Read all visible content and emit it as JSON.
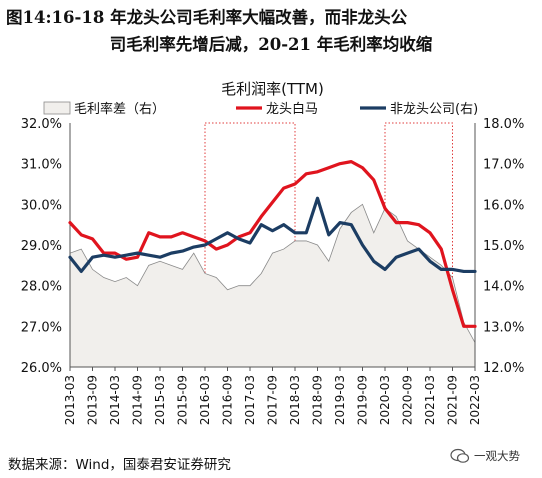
{
  "figure": {
    "title_line1": "图14:16-18 年龙头公司毛利率大幅改善，而非龙头公",
    "title_line2": "司毛利率先增后减，20-21 年毛利率均收缩",
    "source": "数据来源：Wind，国泰君安证券研究",
    "watermark": "一观大势"
  },
  "chart_data": {
    "type": "line",
    "title": "毛利润率(TTM)",
    "x": [
      "2013-03",
      "2013-06",
      "2013-09",
      "2013-12",
      "2014-03",
      "2014-06",
      "2014-09",
      "2014-12",
      "2015-03",
      "2015-06",
      "2015-09",
      "2015-12",
      "2016-03",
      "2016-06",
      "2016-09",
      "2016-12",
      "2017-03",
      "2017-06",
      "2017-09",
      "2017-12",
      "2018-03",
      "2018-06",
      "2018-09",
      "2018-12",
      "2019-03",
      "2019-06",
      "2019-09",
      "2019-12",
      "2020-03",
      "2020-06",
      "2020-09",
      "2020-12",
      "2021-03",
      "2021-06",
      "2021-09",
      "2021-12",
      "2022-03"
    ],
    "xticks": [
      "2013-03",
      "2013-09",
      "2014-03",
      "2014-09",
      "2015-03",
      "2015-09",
      "2016-03",
      "2016-09",
      "2017-03",
      "2017-09",
      "2018-03",
      "2018-09",
      "2019-03",
      "2019-09",
      "2020-03",
      "2020-09",
      "2021-03",
      "2021-09",
      "2022-03"
    ],
    "y_left": {
      "ylim": [
        26.0,
        32.0
      ],
      "ticks": [
        "26.0%",
        "27.0%",
        "28.0%",
        "29.0%",
        "30.0%",
        "31.0%",
        "32.0%"
      ]
    },
    "y_right": {
      "ylim": [
        12.0,
        18.0
      ],
      "ticks": [
        "12.0%",
        "13.0%",
        "14.0%",
        "15.0%",
        "16.0%",
        "17.0%",
        "18.0%"
      ]
    },
    "series": [
      {
        "name": "毛利率差（右）",
        "axis": "right",
        "style": "area",
        "color": "#f1efec",
        "values": [
          14.8,
          14.9,
          14.4,
          14.2,
          14.1,
          14.2,
          14.0,
          14.5,
          14.6,
          14.5,
          14.4,
          14.8,
          14.3,
          14.2,
          13.9,
          14.0,
          14.0,
          14.3,
          14.8,
          14.9,
          15.1,
          15.1,
          15.0,
          14.6,
          15.4,
          15.8,
          16.0,
          15.3,
          15.9,
          15.7,
          15.1,
          14.9,
          14.7,
          14.5,
          14.2,
          13.1,
          12.6
        ]
      },
      {
        "name": "龙头白马",
        "axis": "left",
        "style": "line",
        "color": "#e0141e",
        "values": [
          29.55,
          29.25,
          29.15,
          28.8,
          28.8,
          28.65,
          28.7,
          29.3,
          29.2,
          29.2,
          29.3,
          29.2,
          29.1,
          28.9,
          29.0,
          29.2,
          29.3,
          29.7,
          30.05,
          30.4,
          30.5,
          30.75,
          30.8,
          30.9,
          31.0,
          31.05,
          30.9,
          30.6,
          29.9,
          29.55,
          29.55,
          29.5,
          29.3,
          28.9,
          27.9,
          27.0,
          27.0
        ]
      },
      {
        "name": "非龙头公司(右)",
        "axis": "right",
        "style": "line",
        "color": "#1c3d63",
        "values": [
          14.7,
          14.35,
          14.7,
          14.75,
          14.7,
          14.75,
          14.8,
          14.75,
          14.7,
          14.8,
          14.85,
          14.95,
          15.0,
          15.15,
          15.3,
          15.15,
          15.05,
          15.5,
          15.35,
          15.5,
          15.3,
          15.3,
          16.15,
          15.25,
          15.55,
          15.5,
          15.0,
          14.6,
          14.4,
          14.7,
          14.8,
          14.9,
          14.6,
          14.4,
          14.4,
          14.35,
          14.35
        ]
      }
    ],
    "highlight_ranges": [
      [
        "2016-03",
        "2018-03"
      ],
      [
        "2020-03",
        "2021-09"
      ]
    ],
    "legend": "top",
    "grid": false
  }
}
